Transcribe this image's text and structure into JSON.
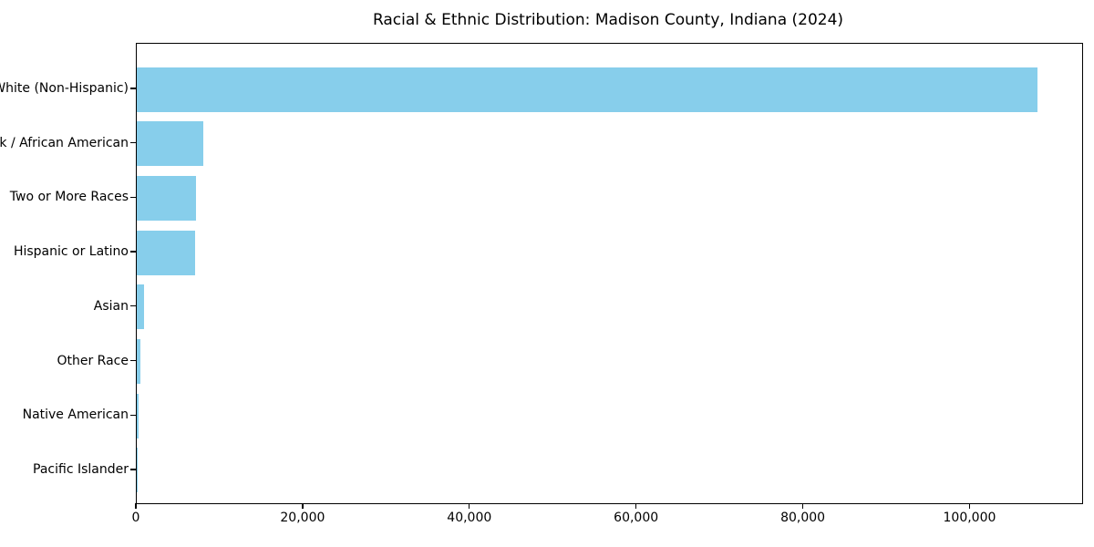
{
  "title": "Racial & Ethnic Distribution: Madison County, Indiana (2024)",
  "chart_data": {
    "type": "bar",
    "orientation": "horizontal",
    "title": "Racial & Ethnic Distribution: Madison County, Indiana (2024)",
    "xlabel": "",
    "ylabel": "",
    "categories": [
      "White (Non-Hispanic)",
      "Black / African American",
      "Two or More Races",
      "Hispanic or Latino",
      "Asian",
      "Other Race",
      "Native American",
      "Pacific Islander"
    ],
    "values": [
      108000,
      8000,
      7100,
      7000,
      900,
      430,
      200,
      50
    ],
    "xlim": [
      0,
      113400
    ],
    "x_ticks": [
      0,
      20000,
      40000,
      60000,
      80000,
      100000
    ],
    "x_tick_labels": [
      "0",
      "20,000",
      "40,000",
      "60,000",
      "80,000",
      "100,000"
    ],
    "bar_color": "#87CEEB",
    "frame_color": "#000000",
    "grid": false,
    "legend": null
  }
}
